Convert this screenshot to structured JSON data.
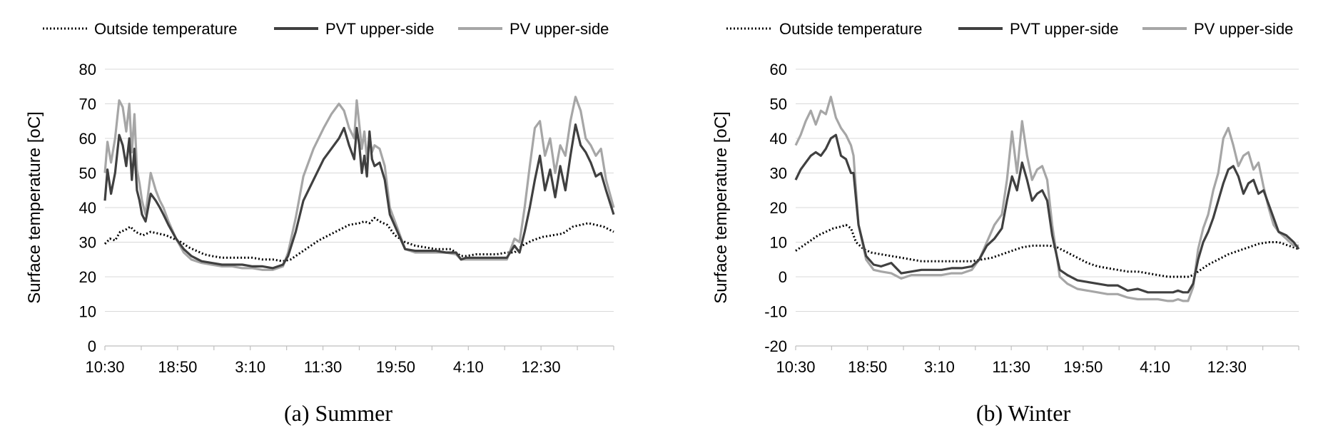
{
  "chart_data": [
    {
      "type": "line",
      "caption": "(a) Summer",
      "ylabel": "Surface temperature [oC]",
      "ylim": [
        0,
        80
      ],
      "yticks": [
        0,
        10,
        20,
        30,
        40,
        50,
        60,
        70,
        80
      ],
      "xtick_labels": [
        "10:30",
        "18:50",
        "3:10",
        "11:30",
        "19:50",
        "4:10",
        "12:30"
      ],
      "x_range": [
        0,
        1.0
      ],
      "grid": true,
      "legend_position": "top",
      "series": [
        {
          "name": "Outside temperature",
          "style": "dotted",
          "color": "#000000",
          "x": [
            0.0,
            0.01,
            0.02,
            0.03,
            0.04,
            0.05,
            0.06,
            0.075,
            0.09,
            0.105,
            0.12,
            0.135,
            0.15,
            0.165,
            0.18,
            0.195,
            0.21,
            0.23,
            0.25,
            0.27,
            0.29,
            0.31,
            0.33,
            0.35,
            0.365,
            0.38,
            0.4,
            0.42,
            0.44,
            0.46,
            0.48,
            0.5,
            0.51,
            0.52,
            0.53,
            0.54,
            0.555,
            0.57,
            0.59,
            0.61,
            0.63,
            0.65,
            0.68,
            0.7,
            0.71,
            0.73,
            0.75,
            0.77,
            0.79,
            0.805,
            0.82,
            0.84,
            0.86,
            0.88,
            0.9,
            0.92,
            0.935,
            0.95,
            0.965,
            0.98,
            1.0
          ],
          "y": [
            29.5,
            31,
            30.5,
            33,
            33.5,
            34.5,
            33,
            32,
            33,
            32.5,
            32,
            31,
            30,
            28.5,
            27.5,
            26.5,
            26,
            25.5,
            25.5,
            25.5,
            25.5,
            25,
            25,
            24.5,
            25,
            26.5,
            28.5,
            30.5,
            32,
            33.5,
            35,
            35.5,
            36,
            35.5,
            37,
            36,
            35,
            32,
            30,
            29,
            28.5,
            28,
            28,
            26,
            26,
            26.5,
            26.5,
            26.5,
            27,
            27,
            29,
            30.5,
            31.5,
            32,
            32.5,
            34.5,
            35,
            35.5,
            35,
            34.5,
            33
          ]
        },
        {
          "name": "PVT upper-side",
          "style": "solid",
          "color": "#404040",
          "x": [
            0.0,
            0.005,
            0.012,
            0.02,
            0.028,
            0.035,
            0.042,
            0.048,
            0.053,
            0.058,
            0.063,
            0.068,
            0.073,
            0.08,
            0.09,
            0.1,
            0.108,
            0.115,
            0.125,
            0.14,
            0.155,
            0.17,
            0.19,
            0.21,
            0.23,
            0.25,
            0.27,
            0.29,
            0.31,
            0.33,
            0.35,
            0.36,
            0.375,
            0.39,
            0.41,
            0.43,
            0.445,
            0.46,
            0.47,
            0.48,
            0.49,
            0.495,
            0.5,
            0.505,
            0.51,
            0.515,
            0.52,
            0.525,
            0.53,
            0.54,
            0.55,
            0.56,
            0.575,
            0.59,
            0.61,
            0.63,
            0.65,
            0.67,
            0.69,
            0.7,
            0.71,
            0.73,
            0.75,
            0.77,
            0.79,
            0.805,
            0.815,
            0.825,
            0.835,
            0.845,
            0.855,
            0.865,
            0.875,
            0.885,
            0.895,
            0.905,
            0.915,
            0.925,
            0.935,
            0.945,
            0.955,
            0.965,
            0.975,
            0.985,
            1.0
          ],
          "y": [
            42,
            51,
            44,
            50,
            61,
            58,
            52,
            60,
            48,
            57,
            45,
            42,
            38,
            36,
            44,
            42,
            40,
            38,
            35,
            31,
            28,
            26,
            24.5,
            24,
            23.5,
            23.5,
            23.5,
            23,
            23,
            22.5,
            23.5,
            26,
            33,
            42,
            48,
            54,
            57,
            60,
            63,
            58,
            54,
            63,
            58,
            50,
            55,
            49,
            62,
            54,
            52,
            53,
            48,
            38,
            33,
            28,
            27.5,
            27.5,
            27.5,
            27,
            27,
            25,
            25.5,
            25.5,
            25.5,
            25.5,
            25.5,
            29,
            27,
            33,
            40,
            48,
            55,
            45,
            51,
            43,
            52,
            45,
            55,
            64,
            58,
            56,
            53,
            49,
            50,
            45,
            38
          ]
        },
        {
          "name": "PV upper-side",
          "style": "solid",
          "color": "#a6a6a6",
          "x": [
            0.0,
            0.005,
            0.012,
            0.02,
            0.028,
            0.035,
            0.042,
            0.048,
            0.053,
            0.058,
            0.063,
            0.068,
            0.073,
            0.08,
            0.09,
            0.1,
            0.108,
            0.115,
            0.125,
            0.14,
            0.155,
            0.17,
            0.19,
            0.21,
            0.23,
            0.25,
            0.27,
            0.29,
            0.31,
            0.33,
            0.35,
            0.36,
            0.375,
            0.39,
            0.41,
            0.43,
            0.445,
            0.46,
            0.47,
            0.48,
            0.49,
            0.495,
            0.5,
            0.505,
            0.51,
            0.515,
            0.52,
            0.525,
            0.53,
            0.54,
            0.55,
            0.56,
            0.575,
            0.59,
            0.61,
            0.63,
            0.65,
            0.67,
            0.69,
            0.7,
            0.71,
            0.73,
            0.75,
            0.77,
            0.79,
            0.805,
            0.815,
            0.825,
            0.835,
            0.845,
            0.855,
            0.865,
            0.875,
            0.885,
            0.895,
            0.905,
            0.915,
            0.925,
            0.935,
            0.945,
            0.955,
            0.965,
            0.975,
            0.985,
            1.0
          ],
          "y": [
            50,
            59,
            53,
            60,
            71,
            69,
            62,
            70,
            56,
            67,
            51,
            47,
            42,
            38,
            50,
            45,
            42,
            40,
            36,
            31,
            27,
            25,
            24,
            23.5,
            23,
            23,
            22.5,
            22.5,
            22,
            22,
            23,
            27,
            37,
            49,
            57,
            63,
            67,
            70,
            68,
            63,
            60,
            71,
            64,
            57,
            62,
            54,
            61,
            56,
            58,
            57,
            52,
            40,
            34,
            28,
            27,
            27,
            27,
            27,
            26.5,
            25,
            25,
            25,
            25,
            25,
            25,
            31,
            30,
            40,
            52,
            63,
            65,
            55,
            60,
            50,
            58,
            55,
            65,
            72,
            68,
            60,
            58,
            55,
            57,
            48,
            40
          ]
        }
      ]
    },
    {
      "type": "line",
      "caption": "(b) Winter",
      "ylabel": "Surface temperature [oC]",
      "ylim": [
        -20,
        60
      ],
      "yticks": [
        -20,
        -10,
        0,
        10,
        20,
        30,
        40,
        50,
        60
      ],
      "xtick_labels": [
        "10:30",
        "18:50",
        "3:10",
        "11:30",
        "19:50",
        "4:10",
        "12:30"
      ],
      "x_range": [
        0,
        1.0
      ],
      "grid": true,
      "legend_position": "top",
      "series": [
        {
          "name": "Outside temperature",
          "style": "dotted",
          "color": "#000000",
          "x": [
            0.0,
            0.015,
            0.03,
            0.045,
            0.06,
            0.075,
            0.09,
            0.1,
            0.11,
            0.12,
            0.135,
            0.15,
            0.17,
            0.19,
            0.21,
            0.23,
            0.25,
            0.27,
            0.29,
            0.31,
            0.33,
            0.35,
            0.37,
            0.39,
            0.41,
            0.43,
            0.45,
            0.47,
            0.49,
            0.505,
            0.52,
            0.54,
            0.56,
            0.58,
            0.6,
            0.62,
            0.64,
            0.66,
            0.68,
            0.7,
            0.72,
            0.74,
            0.76,
            0.78,
            0.79,
            0.8,
            0.82,
            0.84,
            0.86,
            0.88,
            0.9,
            0.92,
            0.94,
            0.96,
            0.98,
            1.0
          ],
          "y": [
            7.5,
            9,
            10.5,
            12,
            13,
            14,
            14.5,
            15,
            14,
            10,
            8,
            7,
            6.5,
            6,
            5.5,
            5,
            4.5,
            4.5,
            4.5,
            4.5,
            4.5,
            4.5,
            5,
            5.5,
            6.5,
            7.5,
            8.5,
            9,
            9,
            9,
            8.5,
            7,
            5.5,
            4,
            3,
            2.5,
            2,
            1.5,
            1.5,
            1,
            0.5,
            0,
            0,
            0,
            0.5,
            1.5,
            3.5,
            5,
            6.5,
            7.5,
            8.5,
            9.5,
            10,
            10,
            9,
            8
          ]
        },
        {
          "name": "PVT upper-side",
          "style": "solid",
          "color": "#404040",
          "x": [
            0.0,
            0.01,
            0.02,
            0.03,
            0.04,
            0.05,
            0.06,
            0.07,
            0.08,
            0.09,
            0.1,
            0.11,
            0.115,
            0.125,
            0.14,
            0.155,
            0.17,
            0.19,
            0.21,
            0.23,
            0.25,
            0.27,
            0.29,
            0.31,
            0.33,
            0.35,
            0.365,
            0.38,
            0.395,
            0.41,
            0.42,
            0.43,
            0.44,
            0.45,
            0.46,
            0.47,
            0.48,
            0.49,
            0.5,
            0.51,
            0.525,
            0.54,
            0.56,
            0.58,
            0.6,
            0.62,
            0.64,
            0.66,
            0.68,
            0.7,
            0.72,
            0.74,
            0.75,
            0.76,
            0.77,
            0.78,
            0.79,
            0.8,
            0.81,
            0.82,
            0.83,
            0.84,
            0.85,
            0.86,
            0.87,
            0.88,
            0.89,
            0.9,
            0.91,
            0.92,
            0.93,
            0.94,
            0.95,
            0.96,
            0.975,
            0.99,
            1.0
          ],
          "y": [
            28,
            31,
            33,
            35,
            36,
            35,
            37,
            40,
            41,
            35,
            34,
            30,
            30,
            15,
            6,
            3.5,
            3,
            4,
            1,
            1.5,
            2,
            2,
            2,
            2.5,
            2.5,
            3,
            5,
            9,
            11,
            14,
            22,
            29,
            25,
            33,
            28,
            22,
            24,
            25,
            22,
            12,
            2,
            0.5,
            -1,
            -1.5,
            -2,
            -2.5,
            -2.5,
            -4,
            -3.5,
            -4.5,
            -4.5,
            -4.5,
            -4.5,
            -4,
            -4.5,
            -4.5,
            -2,
            5,
            10,
            13,
            17,
            22,
            27,
            31,
            32,
            29,
            24,
            27,
            28,
            24,
            25,
            21,
            17,
            13,
            12,
            10,
            8
          ]
        },
        {
          "name": "PV upper-side",
          "style": "solid",
          "color": "#a6a6a6",
          "x": [
            0.0,
            0.01,
            0.02,
            0.03,
            0.04,
            0.05,
            0.06,
            0.07,
            0.08,
            0.09,
            0.1,
            0.11,
            0.115,
            0.125,
            0.14,
            0.155,
            0.17,
            0.19,
            0.21,
            0.23,
            0.25,
            0.27,
            0.29,
            0.31,
            0.33,
            0.35,
            0.365,
            0.38,
            0.395,
            0.41,
            0.42,
            0.43,
            0.44,
            0.45,
            0.46,
            0.47,
            0.48,
            0.49,
            0.5,
            0.51,
            0.525,
            0.54,
            0.56,
            0.58,
            0.6,
            0.62,
            0.64,
            0.66,
            0.68,
            0.7,
            0.72,
            0.74,
            0.75,
            0.76,
            0.77,
            0.78,
            0.79,
            0.8,
            0.81,
            0.82,
            0.83,
            0.84,
            0.85,
            0.86,
            0.87,
            0.88,
            0.89,
            0.9,
            0.91,
            0.92,
            0.93,
            0.94,
            0.95,
            0.96,
            0.975,
            0.99,
            1.0
          ],
          "y": [
            38,
            41,
            45,
            48,
            44,
            48,
            47,
            52,
            46,
            43,
            41,
            38,
            35,
            15,
            5,
            2,
            1.5,
            1,
            -0.5,
            0.5,
            0.5,
            0.5,
            0.5,
            1,
            1,
            2,
            5,
            10,
            15,
            18,
            28,
            42,
            30,
            45,
            35,
            28,
            31,
            32,
            28,
            15,
            0,
            -2,
            -3.5,
            -4,
            -4.5,
            -5,
            -5,
            -6,
            -6.5,
            -6.5,
            -6.5,
            -7,
            -7,
            -6.5,
            -7,
            -7,
            -3,
            8,
            14,
            18,
            25,
            30,
            40,
            43,
            38,
            32,
            35,
            36,
            31,
            33,
            26,
            20,
            15,
            13,
            11,
            9,
            9
          ]
        }
      ]
    }
  ]
}
